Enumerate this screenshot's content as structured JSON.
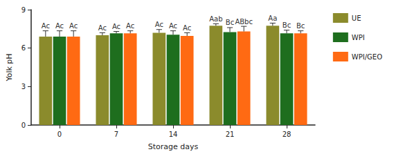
{
  "chart_data": {
    "type": "bar",
    "x_label": "Storage days",
    "y_label": "Yolk pH",
    "categories": [
      "0",
      "7",
      "14",
      "21",
      "28"
    ],
    "series": [
      {
        "name": "UE",
        "color": "#8b8b2c",
        "values": [
          6.9,
          7.0,
          7.2,
          7.75,
          7.75
        ],
        "errors": [
          0.45,
          0.2,
          0.25,
          0.15,
          0.2
        ],
        "annotations": [
          "Ac",
          "Ac",
          "Ac",
          "Aab",
          "Aa"
        ]
      },
      {
        "name": "WPI",
        "color": "#1e6e1e",
        "values": [
          6.9,
          7.15,
          7.05,
          7.25,
          7.15
        ],
        "errors": [
          0.45,
          0.15,
          0.3,
          0.35,
          0.25
        ],
        "annotations": [
          "Ac",
          "Ac",
          "Ac",
          "Bc",
          "Bc"
        ]
      },
      {
        "name": "WPI/GEO",
        "color": "#ff6a13",
        "values": [
          6.9,
          7.15,
          6.95,
          7.3,
          7.15
        ],
        "errors": [
          0.45,
          0.2,
          0.25,
          0.4,
          0.2
        ],
        "annotations": [
          "Ac",
          "Ac",
          "Ac",
          "ABbc",
          "Bc"
        ]
      }
    ],
    "ylim": [
      0,
      9
    ],
    "yticks": [
      0,
      3,
      6,
      9
    ],
    "grid": false,
    "legend": "right"
  }
}
